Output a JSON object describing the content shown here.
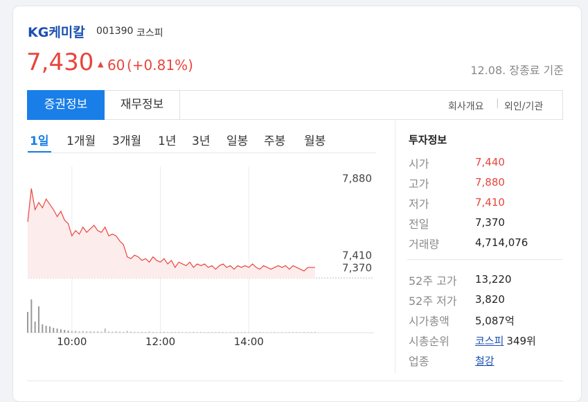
{
  "header": {
    "name": "KG케미칼",
    "code": "001390",
    "market": "코스피",
    "price": "7,430",
    "change": "60",
    "change_pct": "(+0.81%)",
    "date_note": "12.08. 장종료 기준"
  },
  "tabs": [
    "증권정보",
    "재무정보"
  ],
  "links": [
    "회사개요",
    "외인/기관"
  ],
  "periods": [
    "1일",
    "1개월",
    "3개월",
    "1년",
    "3년",
    "일봉",
    "주봉",
    "월봉"
  ],
  "chart_data": {
    "type": "line",
    "color": "#e8453c",
    "x": [
      "09:00",
      "09:05",
      "09:10",
      "09:15",
      "09:20",
      "09:25",
      "09:30",
      "09:35",
      "09:40",
      "09:45",
      "09:50",
      "09:55",
      "10:00",
      "10:05",
      "10:10",
      "10:15",
      "10:20",
      "10:25",
      "10:30",
      "10:35",
      "10:40",
      "10:45",
      "10:50",
      "10:55",
      "11:00",
      "11:05",
      "11:10",
      "11:15",
      "11:20",
      "11:25",
      "11:30",
      "11:35",
      "11:40",
      "11:45",
      "11:50",
      "11:55",
      "12:00",
      "12:05",
      "12:10",
      "12:15",
      "12:20",
      "12:25",
      "12:30",
      "12:35",
      "12:40",
      "12:45",
      "12:50",
      "12:55",
      "13:00",
      "13:05",
      "13:10",
      "13:15",
      "13:20",
      "13:25",
      "13:30",
      "13:35",
      "13:40",
      "13:45",
      "13:50",
      "13:55",
      "14:00",
      "14:05",
      "14:10",
      "14:15",
      "14:20",
      "14:25",
      "14:30",
      "14:35",
      "14:40",
      "14:45",
      "14:50",
      "14:55",
      "15:00",
      "15:05",
      "15:10",
      "15:15",
      "15:20",
      "15:25",
      "15:30"
    ],
    "values": [
      7690,
      7880,
      7760,
      7800,
      7770,
      7820,
      7790,
      7760,
      7720,
      7750,
      7700,
      7680,
      7610,
      7640,
      7620,
      7660,
      7630,
      7650,
      7670,
      7640,
      7630,
      7660,
      7610,
      7620,
      7610,
      7580,
      7560,
      7490,
      7480,
      7500,
      7490,
      7470,
      7480,
      7460,
      7490,
      7470,
      7460,
      7480,
      7450,
      7470,
      7430,
      7460,
      7450,
      7440,
      7460,
      7430,
      7450,
      7440,
      7450,
      7430,
      7440,
      7420,
      7440,
      7450,
      7430,
      7440,
      7420,
      7440,
      7430,
      7440,
      7430,
      7450,
      7430,
      7420,
      7440,
      7430,
      7420,
      7430,
      7440,
      7430,
      7440,
      7420,
      7440,
      7430,
      7420,
      7410,
      7430,
      7430,
      7430
    ],
    "volume": [
      300000,
      480000,
      160000,
      380000,
      120000,
      100000,
      90000,
      70000,
      60000,
      50000,
      40000,
      30000,
      25000,
      30000,
      20000,
      25000,
      20000,
      22000,
      18000,
      20000,
      15000,
      60000,
      18000,
      15000,
      20000,
      15000,
      12000,
      25000,
      15000,
      12000,
      10000,
      12000,
      10000,
      15000,
      10000,
      8000,
      10000,
      12000,
      8000,
      10000,
      9000,
      10000,
      8000,
      9000,
      8000,
      10000,
      8000,
      9000,
      8000,
      9000,
      7000,
      8000,
      9000,
      8000,
      7000,
      9000,
      8000,
      7000,
      8000,
      9000,
      8000,
      7000,
      8000,
      9000,
      8000,
      7000,
      8000,
      9000,
      7000,
      8000,
      7000,
      8000,
      9000,
      8000,
      7000,
      9000,
      8000,
      9000,
      10000
    ],
    "ylim": [
      7370,
      7880
    ],
    "yticks": [
      {
        "value": 7880,
        "label": "7,880"
      },
      {
        "value": 7410,
        "label": "7,410"
      },
      {
        "value": 7370,
        "label": "7,370"
      }
    ]
  },
  "info": {
    "title": "투자정보",
    "rows": [
      {
        "label": "시가",
        "value": "7,440"
      },
      {
        "label": "고가",
        "value": "7,880"
      },
      {
        "label": "저가",
        "value": "7,410"
      },
      {
        "label": "전일",
        "value": "7,370"
      },
      {
        "label": "거래량",
        "value": "4,714,076"
      }
    ],
    "rows2": [
      {
        "label": "52주 고가",
        "value": "13,220"
      },
      {
        "label": "52주 저가",
        "value": "3,820"
      },
      {
        "label": "시가총액",
        "value": "5,087",
        "unit": "억"
      },
      {
        "label": "시총순위",
        "link": "코스피",
        "value": "349위"
      },
      {
        "label": "업종",
        "link": "철강"
      }
    ]
  }
}
